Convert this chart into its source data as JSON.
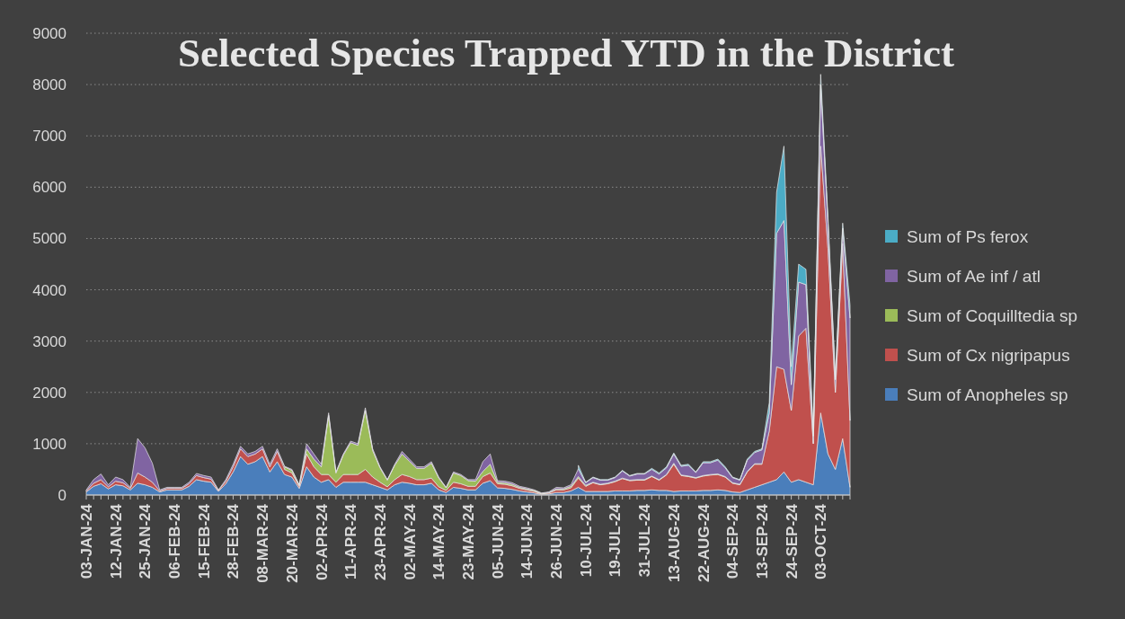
{
  "chart_data": {
    "type": "area",
    "stacked": true,
    "title": "Selected Species Trapped YTD in the District",
    "categories": [
      "03-JAN-24",
      null,
      null,
      null,
      "12-JAN-24",
      null,
      null,
      null,
      "25-JAN-24",
      null,
      null,
      null,
      "06-FEB-24",
      null,
      null,
      null,
      "15-FEB-24",
      null,
      null,
      null,
      "28-FEB-24",
      null,
      null,
      null,
      "08-MAR-24",
      null,
      null,
      null,
      "20-MAR-24",
      null,
      null,
      null,
      "02-APR-24",
      null,
      null,
      null,
      "11-APR-24",
      null,
      null,
      null,
      "23-APR-24",
      null,
      null,
      null,
      "02-MAY-24",
      null,
      null,
      null,
      "14-MAY-24",
      null,
      null,
      null,
      "23-MAY-24",
      null,
      null,
      null,
      "05-JUN-24",
      null,
      null,
      null,
      "14-JUN-24",
      null,
      null,
      null,
      "26-JUN-24",
      null,
      null,
      null,
      "10-JUL-24",
      null,
      null,
      null,
      "19-JUL-24",
      null,
      null,
      null,
      "31-JUL-24",
      null,
      null,
      null,
      "13-AUG-24",
      null,
      null,
      null,
      "22-AUG-24",
      null,
      null,
      null,
      "04-SEP-24",
      null,
      null,
      null,
      "13-SEP-24",
      null,
      null,
      null,
      "24-SEP-24",
      null,
      null,
      null,
      "03-OCT-24",
      null,
      null,
      null,
      null
    ],
    "series": [
      {
        "name": "Sum of Anopheles sp",
        "color": "#4a7ebb",
        "values": [
          60,
          170,
          220,
          120,
          200,
          180,
          100,
          230,
          200,
          150,
          60,
          100,
          100,
          100,
          170,
          300,
          270,
          250,
          70,
          220,
          450,
          750,
          600,
          650,
          750,
          450,
          650,
          400,
          350,
          130,
          550,
          350,
          250,
          300,
          150,
          250,
          250,
          250,
          250,
          200,
          150,
          100,
          200,
          250,
          230,
          200,
          200,
          230,
          100,
          50,
          150,
          130,
          100,
          100,
          230,
          280,
          140,
          130,
          110,
          80,
          60,
          40,
          10,
          20,
          50,
          50,
          80,
          150,
          70,
          70,
          70,
          70,
          80,
          80,
          80,
          90,
          90,
          100,
          90,
          90,
          70,
          80,
          80,
          80,
          90,
          90,
          100,
          90,
          60,
          50,
          100,
          150,
          200,
          250,
          300,
          450,
          250,
          300,
          250,
          200,
          1600,
          800,
          500,
          1100,
          150
        ]
      },
      {
        "name": "Sum of Cx nigripapus",
        "color": "#c0504d",
        "values": [
          20,
          60,
          80,
          40,
          70,
          60,
          30,
          200,
          150,
          100,
          20,
          30,
          30,
          30,
          50,
          80,
          70,
          60,
          20,
          50,
          100,
          150,
          150,
          150,
          150,
          100,
          200,
          100,
          80,
          40,
          250,
          200,
          150,
          100,
          100,
          150,
          150,
          150,
          250,
          150,
          100,
          60,
          100,
          150,
          130,
          100,
          100,
          100,
          60,
          40,
          100,
          90,
          70,
          70,
          130,
          150,
          80,
          80,
          70,
          50,
          40,
          30,
          10,
          20,
          50,
          50,
          60,
          180,
          100,
          170,
          130,
          150,
          180,
          240,
          200,
          200,
          200,
          260,
          200,
          300,
          530,
          300,
          280,
          250,
          280,
          300,
          300,
          260,
          170,
          150,
          350,
          450,
          400,
          1000,
          2200,
          2000,
          1400,
          2800,
          3000,
          800,
          5200,
          4000,
          1500,
          3800,
          1300
        ]
      },
      {
        "name": "Sum of Coquilltedia sp",
        "color": "#9bbb59",
        "values": [
          null,
          null,
          null,
          null,
          null,
          null,
          null,
          null,
          null,
          null,
          null,
          null,
          null,
          null,
          null,
          null,
          null,
          null,
          null,
          null,
          null,
          null,
          null,
          null,
          null,
          null,
          null,
          50,
          50,
          20,
          100,
          150,
          150,
          1150,
          180,
          380,
          620,
          570,
          1150,
          520,
          280,
          130,
          280,
          400,
          300,
          220,
          220,
          290,
          170,
          50,
          180,
          160,
          110,
          100,
          100,
          170,
          30,
          30,
          30,
          20,
          20,
          20,
          10,
          10,
          20,
          20,
          30,
          30,
          20,
          10,
          10,
          10,
          10,
          10,
          10,
          10,
          10,
          10,
          10,
          10,
          20,
          10,
          10,
          10,
          10,
          10,
          10,
          10,
          10,
          10,
          10,
          10,
          10,
          null,
          null,
          null,
          null,
          null,
          null,
          null,
          null,
          null,
          null,
          null,
          null
        ]
      },
      {
        "name": "Sum of Ae inf / atl",
        "color": "#8064a2",
        "values": [
          20,
          70,
          110,
          40,
          80,
          60,
          20,
          670,
          570,
          370,
          20,
          20,
          20,
          20,
          30,
          40,
          40,
          40,
          10,
          30,
          50,
          50,
          50,
          50,
          50,
          50,
          50,
          10,
          20,
          10,
          100,
          100,
          50,
          50,
          20,
          20,
          30,
          30,
          50,
          30,
          20,
          10,
          20,
          50,
          40,
          30,
          30,
          30,
          20,
          10,
          20,
          20,
          20,
          30,
          190,
          200,
          30,
          30,
          30,
          20,
          20,
          10,
          10,
          10,
          30,
          20,
          30,
          150,
          50,
          90,
          80,
          60,
          70,
          140,
          80,
          110,
          110,
          130,
          110,
          130,
          180,
          170,
          210,
          100,
          250,
          230,
          270,
          170,
          100,
          80,
          220,
          220,
          270,
          350,
          2600,
          2900,
          500,
          1050,
          850,
          150,
          1200,
          500,
          250,
          300,
          2000
        ]
      },
      {
        "name": "Sum of Ps ferox",
        "color": "#4bacc6",
        "values": [
          null,
          null,
          null,
          null,
          null,
          null,
          null,
          null,
          null,
          null,
          null,
          null,
          null,
          null,
          null,
          null,
          null,
          null,
          null,
          null,
          null,
          null,
          null,
          null,
          null,
          null,
          null,
          null,
          null,
          null,
          null,
          null,
          null,
          null,
          null,
          null,
          null,
          null,
          null,
          null,
          null,
          null,
          null,
          null,
          null,
          null,
          null,
          null,
          null,
          null,
          null,
          null,
          null,
          null,
          null,
          null,
          null,
          null,
          null,
          null,
          null,
          null,
          null,
          null,
          null,
          null,
          null,
          70,
          10,
          10,
          10,
          10,
          10,
          10,
          10,
          10,
          10,
          20,
          20,
          20,
          20,
          20,
          20,
          10,
          20,
          20,
          20,
          20,
          10,
          10,
          20,
          20,
          20,
          200,
          800,
          1450,
          350,
          350,
          300,
          50,
          200,
          100,
          50,
          100,
          250
        ]
      }
    ],
    "ylim": [
      0,
      9000
    ],
    "yticks": [
      0,
      1000,
      2000,
      3000,
      4000,
      5000,
      6000,
      7000,
      8000,
      9000
    ],
    "grid": "y",
    "legend": "right"
  }
}
